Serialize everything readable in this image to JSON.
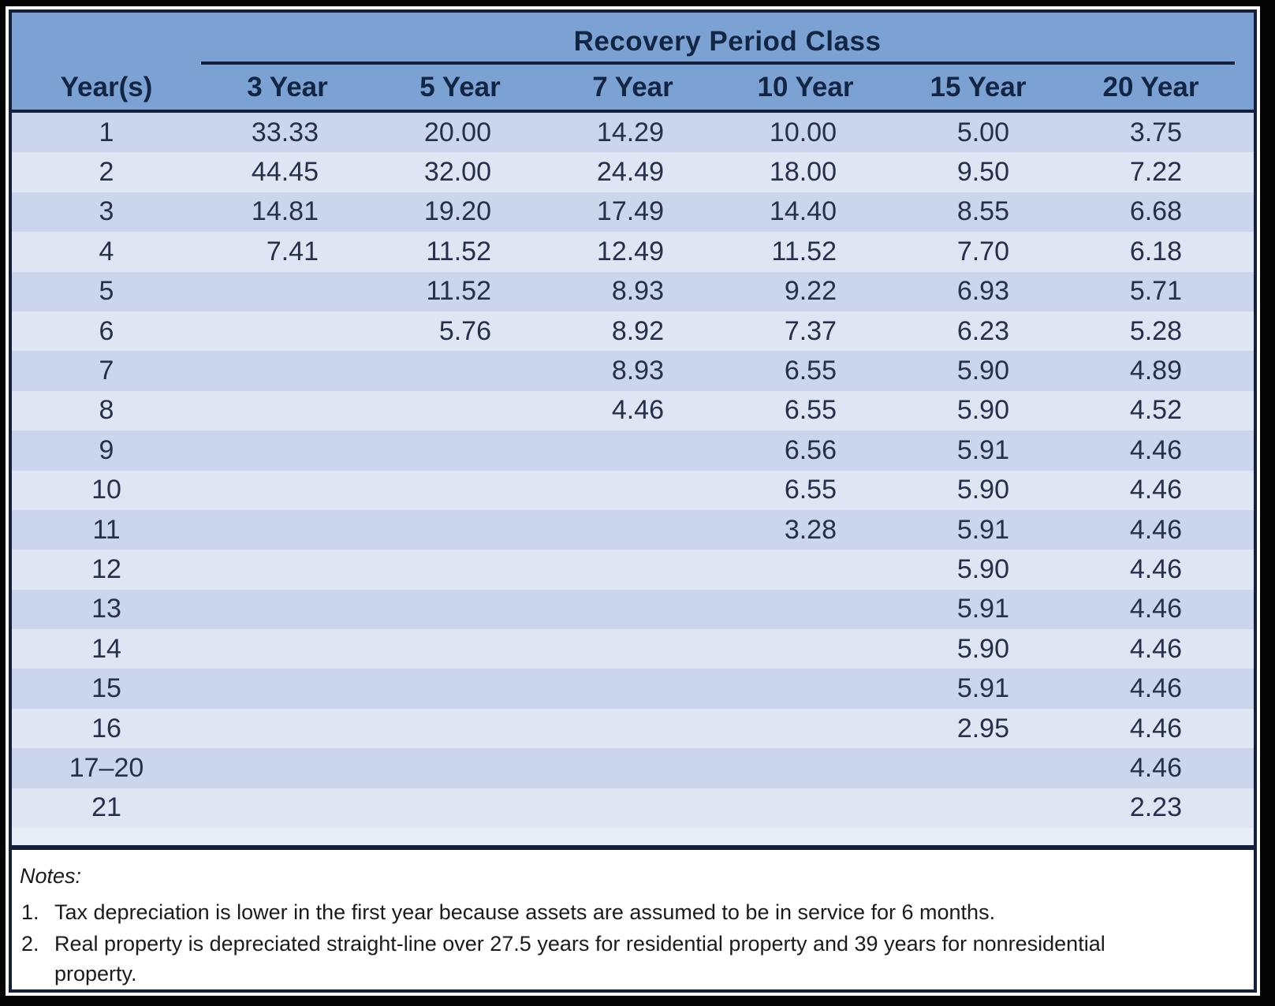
{
  "table": {
    "header_group": "Recovery Period Class",
    "columns": [
      "Year(s)",
      "3 Year",
      "5 Year",
      "7 Year",
      "10 Year",
      "15 Year",
      "20 Year"
    ],
    "rows": [
      {
        "year": "1",
        "values": [
          "33.33",
          "20.00",
          "14.29",
          "10.00",
          "5.00",
          "3.75"
        ]
      },
      {
        "year": "2",
        "values": [
          "44.45",
          "32.00",
          "24.49",
          "18.00",
          "9.50",
          "7.22"
        ]
      },
      {
        "year": "3",
        "values": [
          "14.81",
          "19.20",
          "17.49",
          "14.40",
          "8.55",
          "6.68"
        ]
      },
      {
        "year": "4",
        "values": [
          "7.41",
          "11.52",
          "12.49",
          "11.52",
          "7.70",
          "6.18"
        ]
      },
      {
        "year": "5",
        "values": [
          "",
          "11.52",
          "8.93",
          "9.22",
          "6.93",
          "5.71"
        ]
      },
      {
        "year": "6",
        "values": [
          "",
          "5.76",
          "8.92",
          "7.37",
          "6.23",
          "5.28"
        ]
      },
      {
        "year": "7",
        "values": [
          "",
          "",
          "8.93",
          "6.55",
          "5.90",
          "4.89"
        ]
      },
      {
        "year": "8",
        "values": [
          "",
          "",
          "4.46",
          "6.55",
          "5.90",
          "4.52"
        ]
      },
      {
        "year": "9",
        "values": [
          "",
          "",
          "",
          "6.56",
          "5.91",
          "4.46"
        ]
      },
      {
        "year": "10",
        "values": [
          "",
          "",
          "",
          "6.55",
          "5.90",
          "4.46"
        ]
      },
      {
        "year": "11",
        "values": [
          "",
          "",
          "",
          "3.28",
          "5.91",
          "4.46"
        ]
      },
      {
        "year": "12",
        "values": [
          "",
          "",
          "",
          "",
          "5.90",
          "4.46"
        ]
      },
      {
        "year": "13",
        "values": [
          "",
          "",
          "",
          "",
          "5.91",
          "4.46"
        ]
      },
      {
        "year": "14",
        "values": [
          "",
          "",
          "",
          "",
          "5.90",
          "4.46"
        ]
      },
      {
        "year": "15",
        "values": [
          "",
          "",
          "",
          "",
          "5.91",
          "4.46"
        ]
      },
      {
        "year": "16",
        "values": [
          "",
          "",
          "",
          "",
          "2.95",
          "4.46"
        ]
      },
      {
        "year": "17–20",
        "values": [
          "",
          "",
          "",
          "",
          "",
          "4.46"
        ]
      },
      {
        "year": "21",
        "values": [
          "",
          "",
          "",
          "",
          "",
          "2.23"
        ]
      }
    ]
  },
  "notes": {
    "label": "Notes:",
    "items": [
      {
        "num": "1.",
        "lines": [
          "Tax depreciation is lower in the first year because assets are assumed to be in service for 6 months."
        ]
      },
      {
        "num": "2.",
        "lines": [
          "Real property is depreciated straight-line over 27.5 years for residential property and 39 years for nonresidential",
          "property."
        ]
      }
    ]
  },
  "colors": {
    "page_frame": "#050505",
    "paper": "#ffffff",
    "header_blue": "#7ba2d3",
    "header_text": "#122644",
    "rule": "#14203a",
    "row_odd": "#cbd5ec",
    "row_even": "#dfe5f3",
    "cell_text": "#26304a",
    "tail_strip": "#e9edf7",
    "notes_text": "#1b1b1b"
  }
}
